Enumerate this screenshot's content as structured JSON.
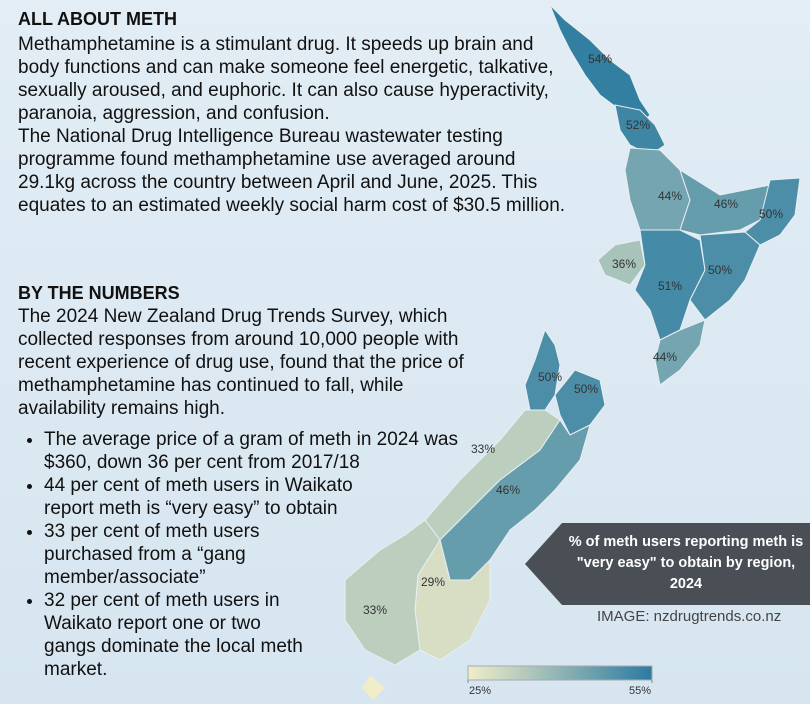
{
  "about": {
    "title": "ALL ABOUT METH",
    "paragraphs": [
      "Methamphetamine is a stimulant drug. It speeds up brain and body functions and can make someone feel energetic, talkative, sexually aroused, and euphoric. It can also cause hyperactivity, paranoia, aggression, and confusion.",
      "The National Drug Intelligence Bureau wastewater testing programme found methamphetamine use averaged around 29.1kg across the country between April and June, 2025. This equates to an estimated weekly social harm cost of $30.5 million."
    ]
  },
  "numbers": {
    "title": "BY THE NUMBERS",
    "paragraph": "The 2024 New Zealand Drug Trends Survey, which collected responses from around 10,000 people with recent experience of drug use, found that the price of methamphetamine has continued to fall, while availability remains high.",
    "bullets": [
      "The average price of a gram of meth in 2024 was $360, down 36 per cent from 2017/18",
      "44 per cent of meth users in Waikato report meth is “very easy” to obtain",
      "33 per cent of meth users purchased from a “gang member/associate”",
      "32 per cent of meth users in Waikato report one or two gangs dominate the local meth market."
    ]
  },
  "map": {
    "title": "% of meth users reporting meth is \"very easy\" to obtain by region, 2024",
    "credit": "IMAGE: nzdrugtrends.co.nz",
    "clim": [
      25,
      55
    ],
    "cticks": [
      {
        "value": 25,
        "label": "25%"
      },
      {
        "value": 55,
        "label": "55%"
      }
    ],
    "colors": [
      "#f1edc9",
      "#2b7ba1"
    ],
    "regions": [
      {
        "value": 54,
        "value_label": "54%"
      },
      {
        "value": 52,
        "value_label": "52%"
      },
      {
        "value": 44,
        "value_label": "44%"
      },
      {
        "value": 46,
        "value_label": "46%"
      },
      {
        "value": 50,
        "value_label": "50%"
      },
      {
        "value": 36,
        "value_label": "36%"
      },
      {
        "value": 51,
        "value_label": "51%"
      },
      {
        "value": 50,
        "value_label": "50%"
      },
      {
        "value": 44,
        "value_label": "44%"
      },
      {
        "value": 50,
        "value_label": "50%"
      },
      {
        "value": 50,
        "value_label": "50%"
      },
      {
        "value": 33,
        "value_label": "33%"
      },
      {
        "value": 46,
        "value_label": "46%"
      },
      {
        "value": 29,
        "value_label": "29%"
      },
      {
        "value": 33,
        "value_label": "33%"
      }
    ]
  }
}
